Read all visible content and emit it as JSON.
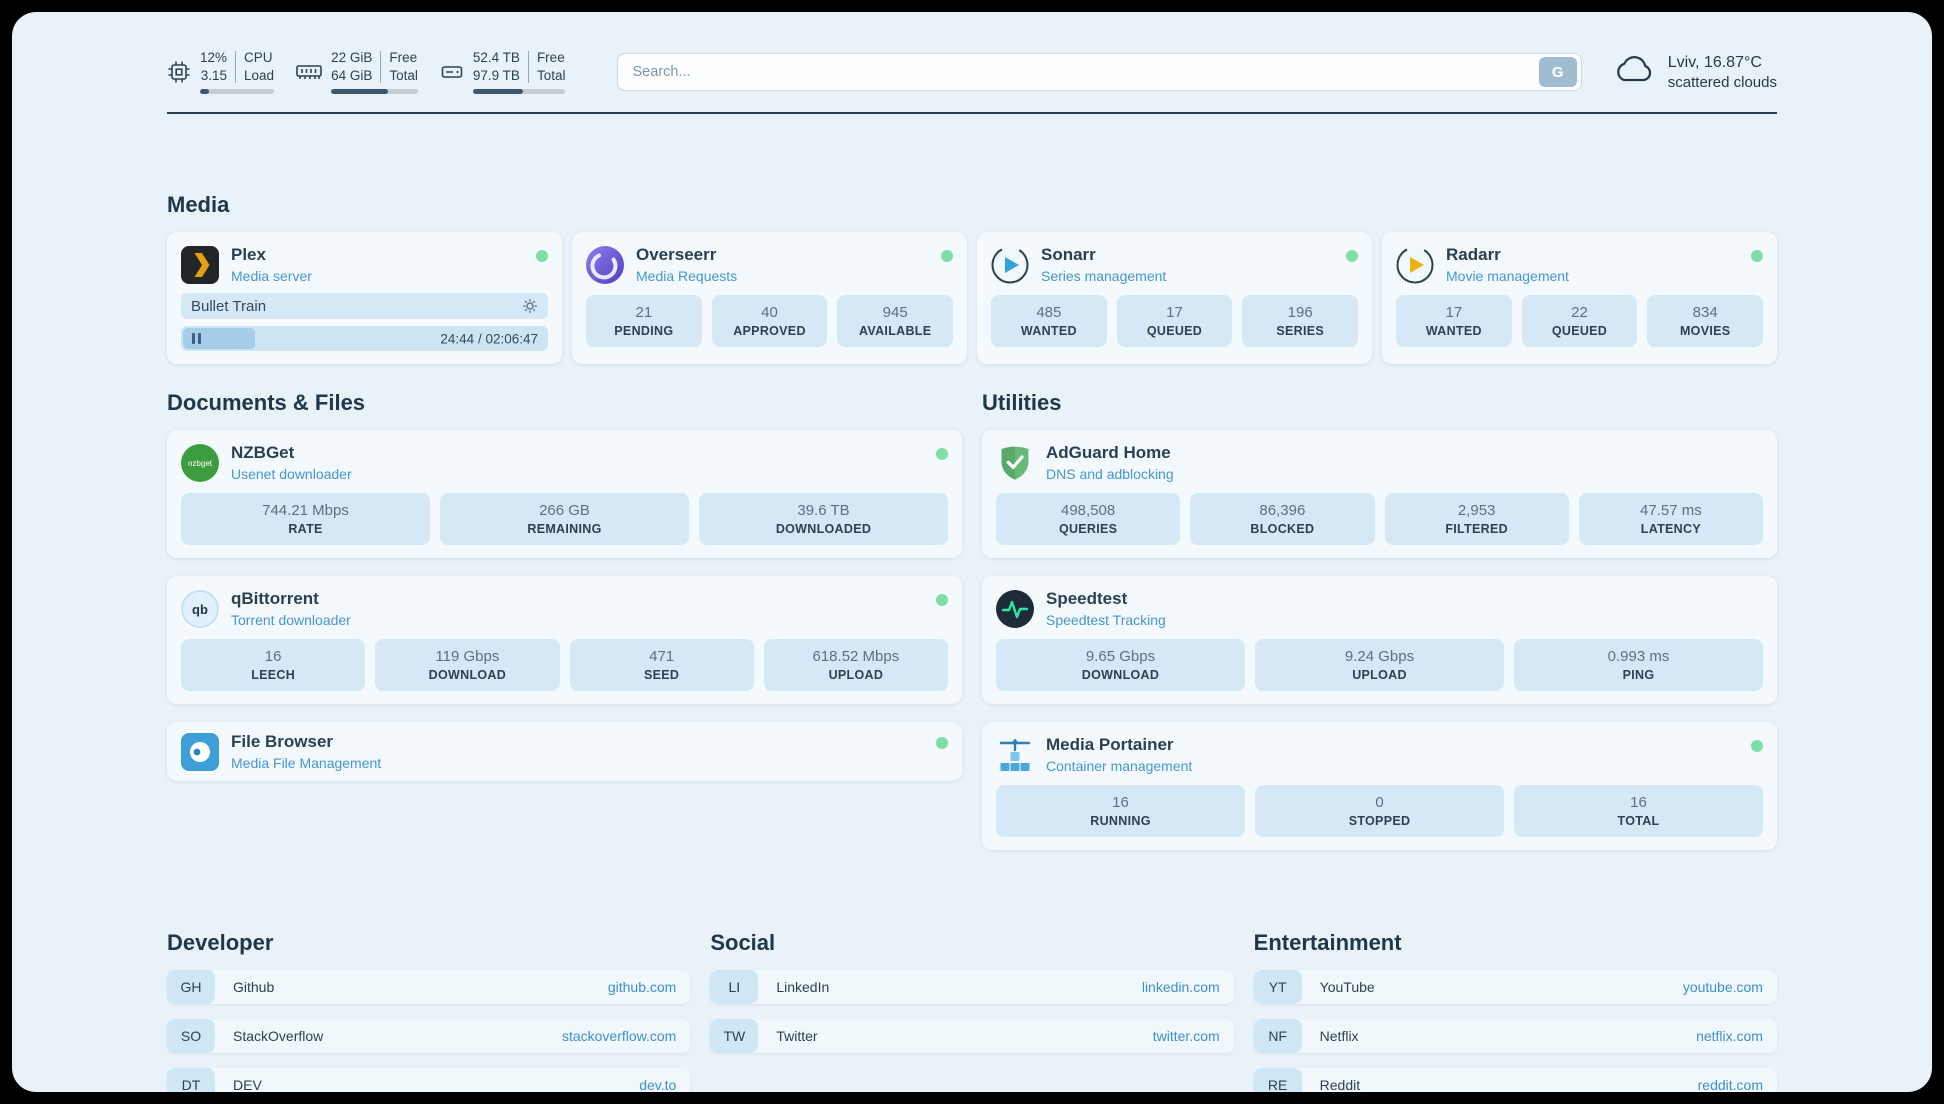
{
  "colors": {
    "background": "#e9f2f8",
    "card": "#f3f9fd",
    "tile": "#d4e9f5",
    "accent_blue": "#4596d1",
    "text_dark": "#2c3f51",
    "status_online": "#7ddfa2",
    "bar_fill": "#3d566e"
  },
  "topbar": {
    "cpu": {
      "icon": "cpu-chip-icon",
      "values": [
        "12%",
        "3.15"
      ],
      "labels": [
        "CPU",
        "Load"
      ],
      "percent": 12
    },
    "ram": {
      "icon": "memory-icon",
      "values": [
        "22 GiB",
        "64 GiB"
      ],
      "labels": [
        "Free",
        "Total"
      ],
      "percent": 66
    },
    "disk": {
      "icon": "hard-drive-icon",
      "values": [
        "52.4 TB",
        "97.9 TB"
      ],
      "labels": [
        "Free",
        "Total"
      ],
      "percent": 54
    },
    "search": {
      "placeholder": "Search...",
      "button_label": "G"
    },
    "weather": {
      "icon": "cloud-icon",
      "location": "Lviv, 16.87°C",
      "condition": "scattered clouds"
    }
  },
  "media": {
    "title": "Media",
    "plex": {
      "icon": "plex-icon",
      "name": "Plex",
      "subtitle": "Media server",
      "status": "online",
      "now_playing": "Bullet Train",
      "progress_percent": 19.5,
      "time": "24:44 / 02:06:47"
    },
    "overseerr": {
      "icon": "overseerr-icon",
      "name": "Overseerr",
      "subtitle": "Media Requests",
      "status": "online",
      "stats": [
        {
          "value": "21",
          "label": "PENDING"
        },
        {
          "value": "40",
          "label": "APPROVED"
        },
        {
          "value": "945",
          "label": "AVAILABLE"
        }
      ]
    },
    "sonarr": {
      "icon": "sonarr-icon",
      "name": "Sonarr",
      "subtitle": "Series management",
      "status": "online",
      "stats": [
        {
          "value": "485",
          "label": "WANTED"
        },
        {
          "value": "17",
          "label": "QUEUED"
        },
        {
          "value": "196",
          "label": "SERIES"
        }
      ]
    },
    "radarr": {
      "icon": "radarr-icon",
      "name": "Radarr",
      "subtitle": "Movie management",
      "status": "online",
      "stats": [
        {
          "value": "17",
          "label": "WANTED"
        },
        {
          "value": "22",
          "label": "QUEUED"
        },
        {
          "value": "834",
          "label": "MOVIES"
        }
      ]
    }
  },
  "documents": {
    "title": "Documents & Files",
    "nzbget": {
      "icon": "nzbget-icon",
      "name": "NZBGet",
      "subtitle": "Usenet downloader",
      "status": "online",
      "stats": [
        {
          "value": "744.21 Mbps",
          "label": "RATE"
        },
        {
          "value": "266 GB",
          "label": "REMAINING"
        },
        {
          "value": "39.6 TB",
          "label": "DOWNLOADED"
        }
      ]
    },
    "qbittorrent": {
      "icon": "qbittorrent-icon",
      "name": "qBittorrent",
      "subtitle": "Torrent downloader",
      "status": "online",
      "stats": [
        {
          "value": "16",
          "label": "LEECH"
        },
        {
          "value": "119 Gbps",
          "label": "DOWNLOAD"
        },
        {
          "value": "471",
          "label": "SEED"
        },
        {
          "value": "618.52 Mbps",
          "label": "UPLOAD"
        }
      ]
    },
    "filebrowser": {
      "icon": "filebrowser-icon",
      "name": "File Browser",
      "subtitle": "Media File Management",
      "status": "online"
    }
  },
  "utilities": {
    "title": "Utilities",
    "adguard": {
      "icon": "adguard-shield-icon",
      "name": "AdGuard Home",
      "subtitle": "DNS and adblocking",
      "stats": [
        {
          "value": "498,508",
          "label": "QUERIES"
        },
        {
          "value": "86,396",
          "label": "BLOCKED"
        },
        {
          "value": "2,953",
          "label": "FILTERED"
        },
        {
          "value": "47.57 ms",
          "label": "LATENCY"
        }
      ]
    },
    "speedtest": {
      "icon": "speedtest-pulse-icon",
      "name": "Speedtest",
      "subtitle": "Speedtest Tracking",
      "stats": [
        {
          "value": "9.65 Gbps",
          "label": "DOWNLOAD"
        },
        {
          "value": "9.24 Gbps",
          "label": "UPLOAD"
        },
        {
          "value": "0.993 ms",
          "label": "PING"
        }
      ]
    },
    "portainer": {
      "icon": "portainer-crane-icon",
      "name": "Media Portainer",
      "subtitle": "Container management",
      "status": "online",
      "stats": [
        {
          "value": "16",
          "label": "RUNNING"
        },
        {
          "value": "0",
          "label": "STOPPED"
        },
        {
          "value": "16",
          "label": "TOTAL"
        }
      ]
    }
  },
  "bookmarks": {
    "developer": {
      "title": "Developer",
      "links": [
        {
          "abbr": "GH",
          "name": "Github",
          "url": "github.com"
        },
        {
          "abbr": "SO",
          "name": "StackOverflow",
          "url": "stackoverflow.com"
        },
        {
          "abbr": "DT",
          "name": "DEV",
          "url": "dev.to"
        }
      ]
    },
    "social": {
      "title": "Social",
      "links": [
        {
          "abbr": "LI",
          "name": "LinkedIn",
          "url": "linkedin.com"
        },
        {
          "abbr": "TW",
          "name": "Twitter",
          "url": "twitter.com"
        }
      ]
    },
    "entertainment": {
      "title": "Entertainment",
      "links": [
        {
          "abbr": "YT",
          "name": "YouTube",
          "url": "youtube.com"
        },
        {
          "abbr": "NF",
          "name": "Netflix",
          "url": "netflix.com"
        },
        {
          "abbr": "RE",
          "name": "Reddit",
          "url": "reddit.com"
        }
      ]
    }
  }
}
